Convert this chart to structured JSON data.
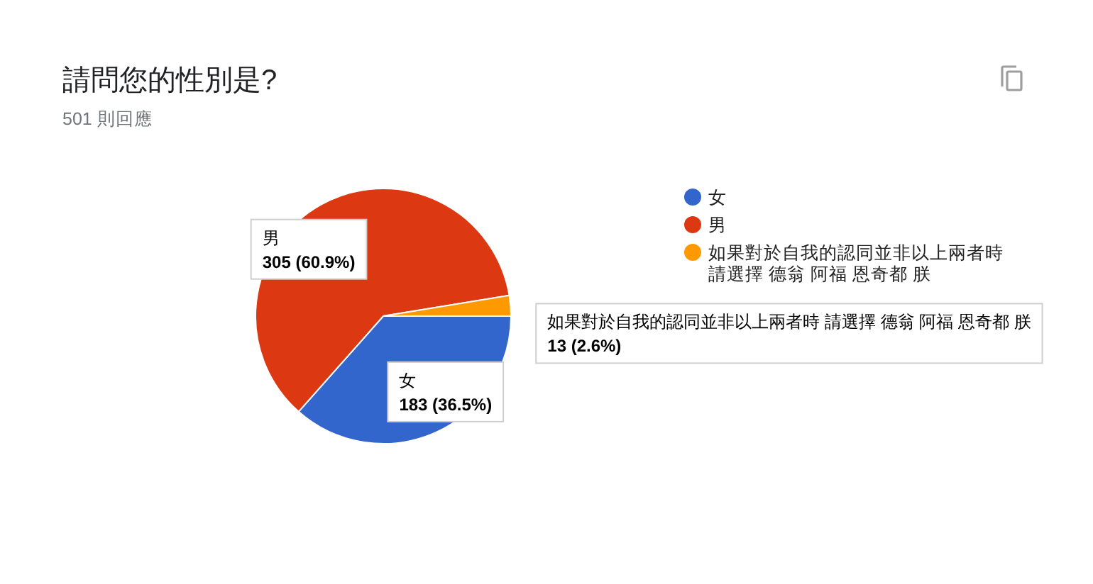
{
  "chart_data": {
    "type": "pie",
    "title": "請問您的性別是?",
    "subtitle": "501 則回應",
    "categories": [
      "女",
      "男",
      "如果對於自我的認同並非以上兩者時 請選擇 德翁 阿福 恩奇都 朕"
    ],
    "values": [
      183,
      305,
      13
    ],
    "colors": [
      "#3366cc",
      "#dc3912",
      "#ff9900"
    ],
    "value_labels": [
      "183 (36.5%)",
      "305 (60.9%)",
      "13 (2.6%)"
    ],
    "legend": "right"
  }
}
